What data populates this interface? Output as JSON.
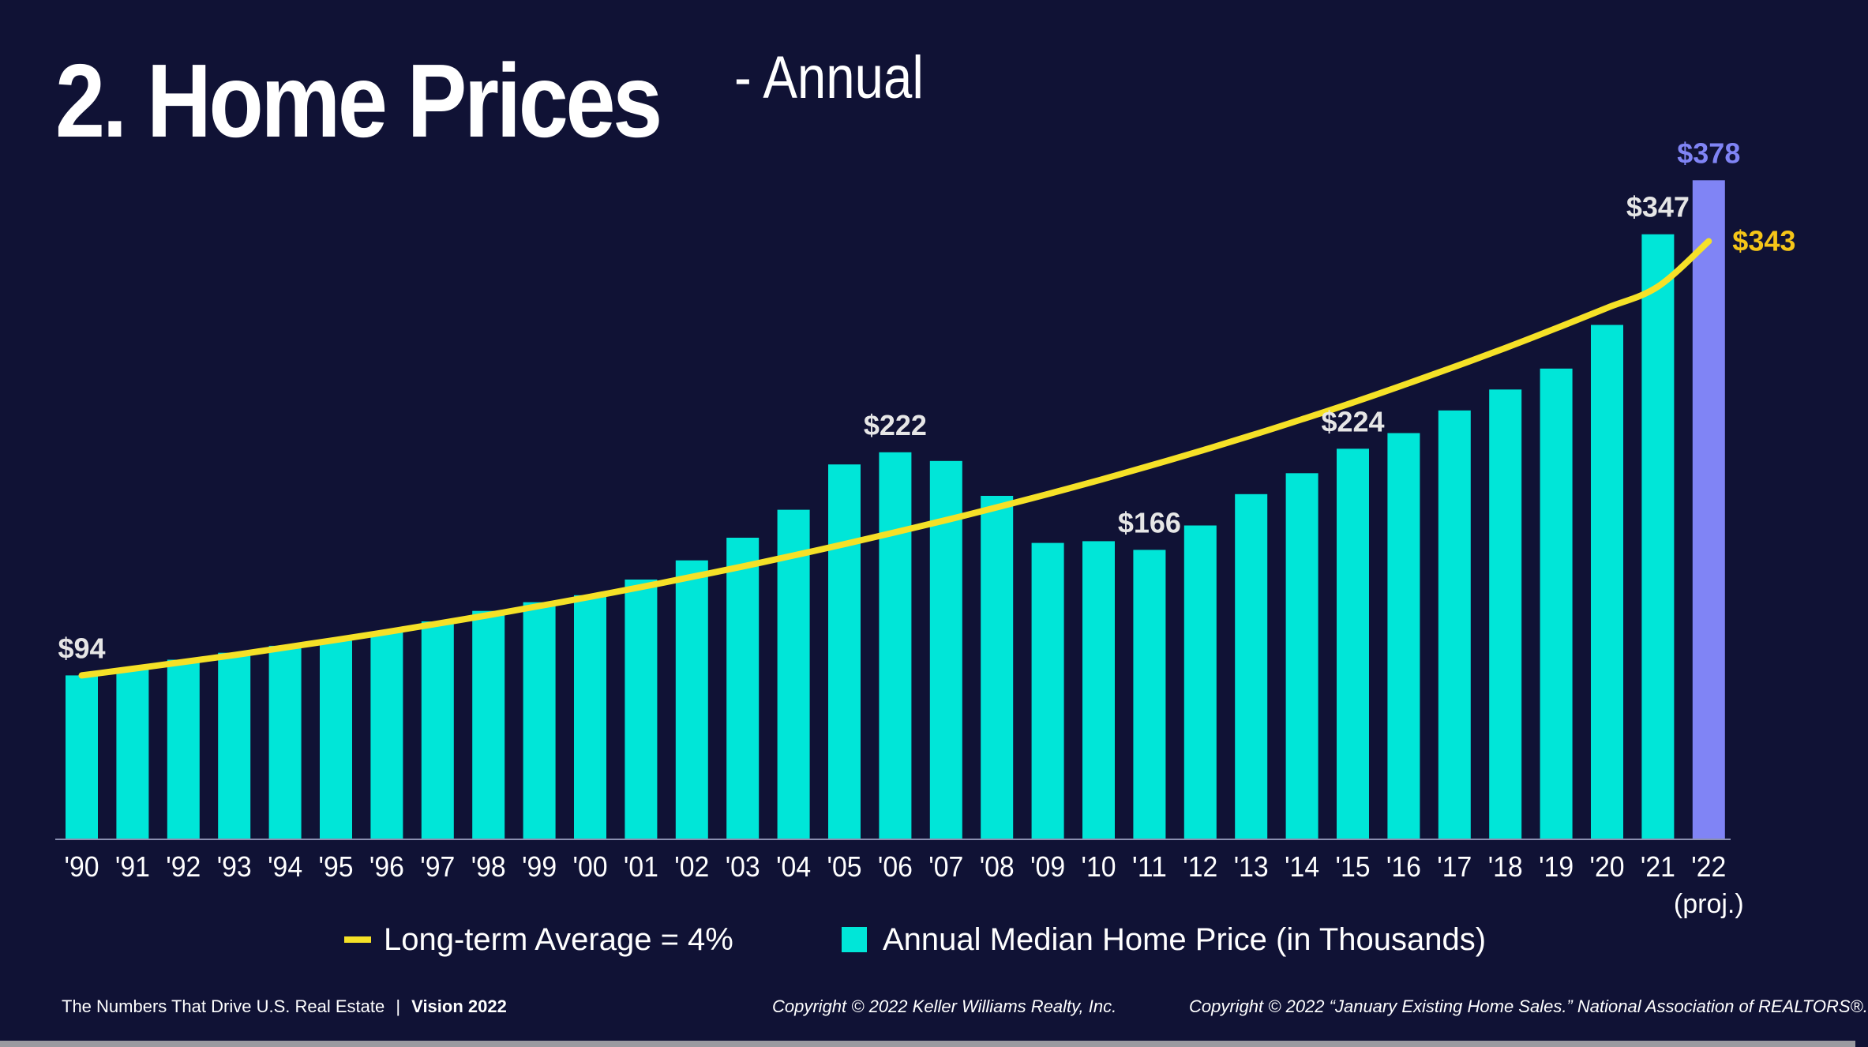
{
  "title": {
    "main": "2. Home Prices",
    "sub": "- Annual"
  },
  "chart_data": {
    "type": "bar",
    "categories": [
      "'90",
      "'91",
      "'92",
      "'93",
      "'94",
      "'95",
      "'96",
      "'97",
      "'98",
      "'99",
      "'00",
      "'01",
      "'02",
      "'03",
      "'04",
      "'05",
      "'06",
      "'07",
      "'08",
      "'09",
      "'10",
      "'11",
      "'12",
      "'13",
      "'14",
      "'15",
      "'16",
      "'17",
      "'18",
      "'19",
      "'20",
      "'21",
      "'22"
    ],
    "category_sublabels": {
      "'22": "(proj.)"
    },
    "series": [
      {
        "name": "Annual Median Home Price (in Thousands)",
        "values": [
          94,
          98,
          103,
          107,
          111,
          114,
          119,
          125,
          131,
          136,
          140,
          149,
          160,
          173,
          189,
          215,
          222,
          217,
          197,
          170,
          171,
          166,
          180,
          198,
          210,
          224,
          233,
          246,
          258,
          270,
          295,
          347,
          378
        ],
        "colors": {
          "default": "#00e6d8",
          "projected": "#8084f5"
        }
      },
      {
        "name": "Long-term Average = 4%",
        "type": "line",
        "values": [
          94,
          97.8,
          101.7,
          105.7,
          110,
          114.4,
          118.9,
          123.7,
          128.6,
          133.8,
          139.1,
          144.7,
          150.5,
          156.5,
          162.8,
          169.3,
          176.1,
          183.1,
          190.4,
          198,
          205.9,
          214.2,
          222.7,
          231.6,
          240.9,
          250.5,
          260.6,
          271,
          281.8,
          293.1,
          304.8,
          317,
          343
        ],
        "color": "#f5e127"
      }
    ],
    "data_labels": [
      {
        "category": "'90",
        "text": "$94",
        "color": "#e6e6e6"
      },
      {
        "category": "'06",
        "text": "$222",
        "color": "#e6e6e6"
      },
      {
        "category": "'11",
        "text": "$166",
        "color": "#e6e6e6"
      },
      {
        "category": "'15",
        "text": "$224",
        "color": "#e6e6e6"
      },
      {
        "category": "'21",
        "text": "$347",
        "color": "#e6e6e6"
      },
      {
        "category": "'22",
        "text": "$378",
        "color": "#8084f5"
      },
      {
        "category": "'22",
        "text": "$343",
        "color": "#f5c518",
        "series": "Long-term Average = 4%"
      }
    ],
    "ylim": [
      0,
      400
    ],
    "grid": false,
    "legend_position": "bottom"
  },
  "legend": {
    "line_label": "Long-term Average = 4%",
    "bar_label": "Annual Median Home Price (in Thousands)"
  },
  "footer": {
    "left_text": "The Numbers That Drive U.S. Real Estate",
    "separator": "|",
    "left_bold": "Vision 2022",
    "middle": "Copyright © 2022 Keller Williams Realty, Inc.",
    "right": "Copyright © 2022 “January Existing Home Sales.” National Association of REALTORS®."
  }
}
